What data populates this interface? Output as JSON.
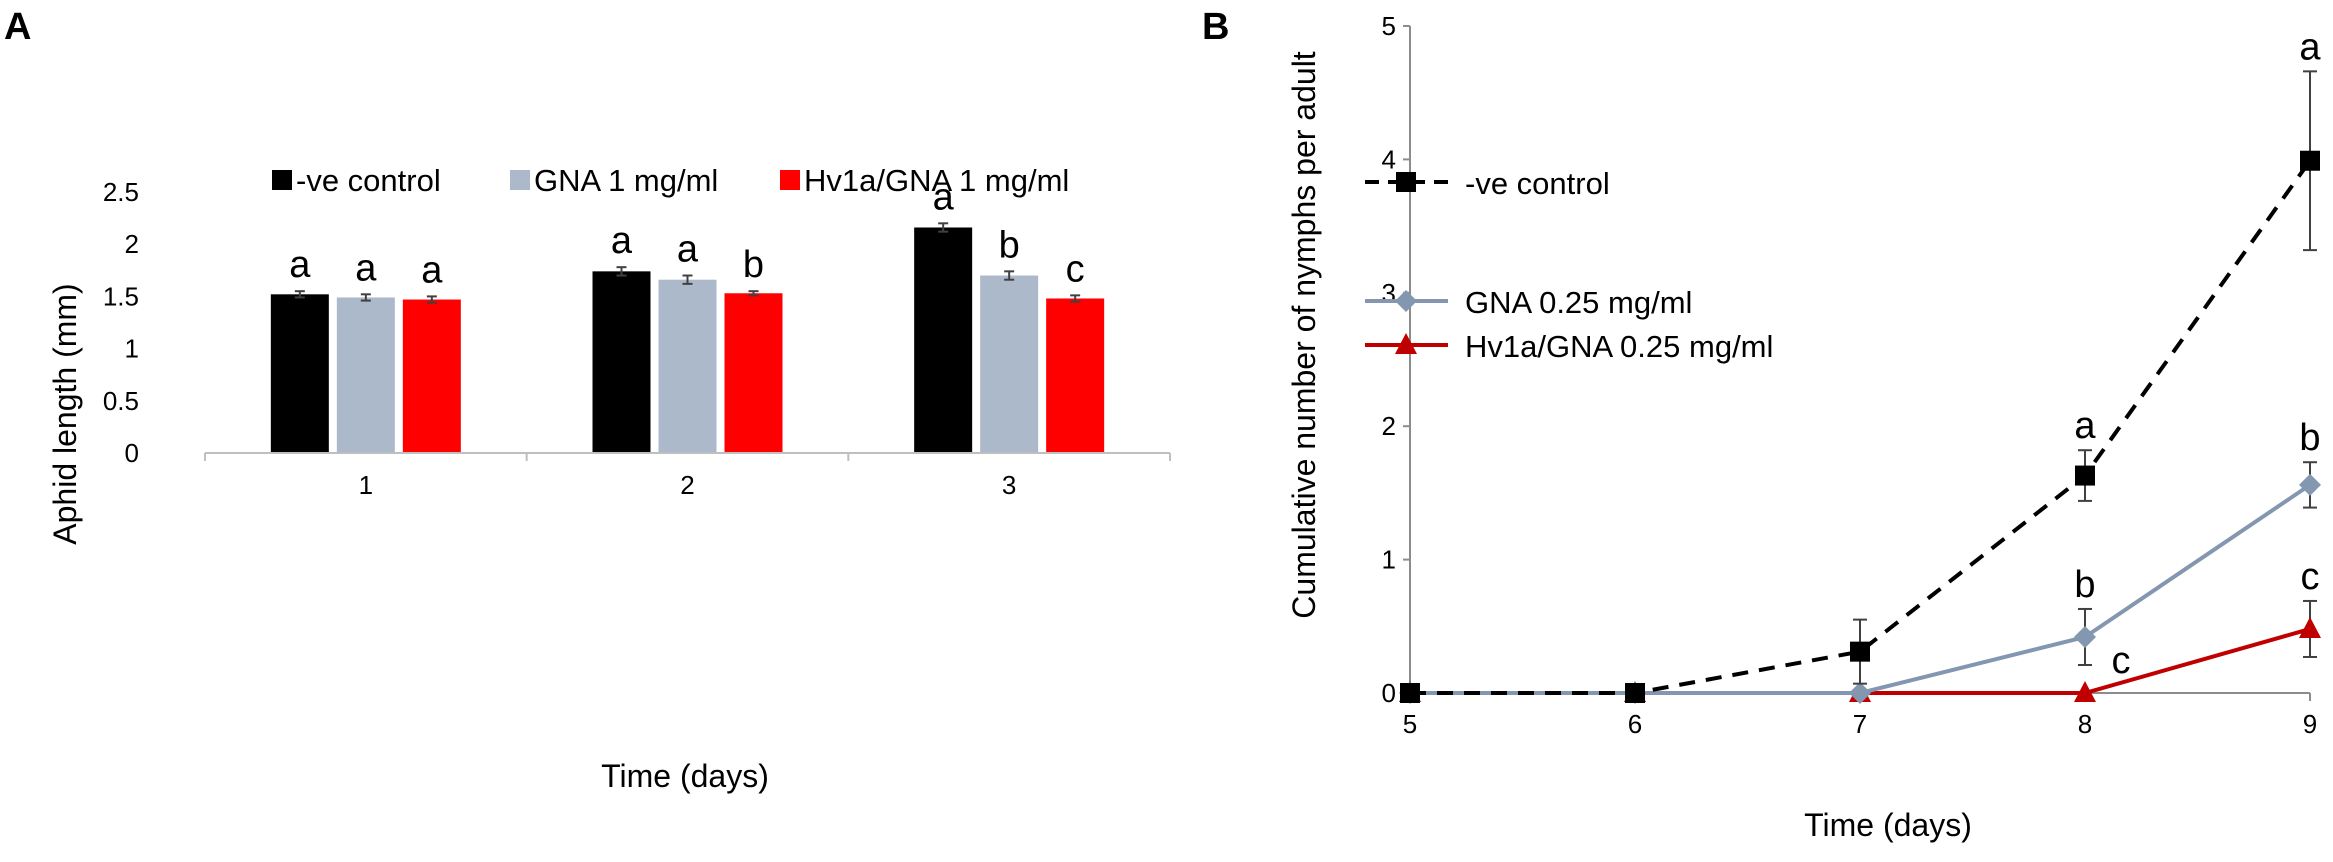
{
  "figure": {
    "panel_a_label": "A",
    "panel_b_label": "B"
  },
  "chart_data": [
    {
      "type": "bar",
      "panel": "A",
      "categories": [
        "1",
        "2",
        "3"
      ],
      "series": [
        {
          "name": "-ve control",
          "color": "#000000",
          "values": [
            1.52,
            1.74,
            2.16
          ],
          "errors": [
            0.03,
            0.04,
            0.04
          ],
          "letters": [
            "a",
            "a",
            "a"
          ]
        },
        {
          "name": "GNA 1 mg/ml",
          "color": "#acb9ca",
          "values": [
            1.49,
            1.66,
            1.7
          ],
          "errors": [
            0.03,
            0.04,
            0.04
          ],
          "letters": [
            "a",
            "a",
            "b"
          ]
        },
        {
          "name": "Hv1a/GNA 1 mg/ml",
          "color": "#ff0000",
          "values": [
            1.47,
            1.53,
            1.48
          ],
          "errors": [
            0.03,
            0.02,
            0.03
          ],
          "letters": [
            "a",
            "b",
            "c"
          ]
        }
      ],
      "xlabel": "Time (days)",
      "ylabel": "Aphid length (mm)",
      "ylim": [
        0,
        2.5
      ],
      "yticks": [
        "0",
        "0.5",
        "1",
        "1.5",
        "2",
        "2.5"
      ],
      "legend_position": "top",
      "grid": false
    },
    {
      "type": "line",
      "panel": "B",
      "x": [
        5,
        6,
        7,
        8,
        9
      ],
      "xticks": [
        "5",
        "6",
        "7",
        "8",
        "9"
      ],
      "series": [
        {
          "name": "-ve control",
          "color": "#000000",
          "style": "dashed",
          "marker": "square",
          "values": [
            0,
            0,
            0.31,
            1.63,
            3.99
          ],
          "errors": [
            0,
            0,
            0.24,
            0.19,
            0.67
          ],
          "letters": [
            "",
            "",
            "",
            "a",
            "a"
          ]
        },
        {
          "name": "GNA 0.25 mg/ml",
          "color": "#8497b0",
          "style": "solid",
          "marker": "diamond",
          "values": [
            0,
            0,
            0,
            0.42,
            1.56
          ],
          "errors": [
            0,
            0,
            0,
            0.21,
            0.17
          ],
          "letters": [
            "",
            "",
            "",
            "b",
            "b"
          ]
        },
        {
          "name": "Hv1a/GNA 0.25 mg/ml",
          "color": "#c00000",
          "style": "solid",
          "marker": "triangle",
          "values": [
            0,
            0,
            0,
            0,
            0.48
          ],
          "errors": [
            0,
            0,
            0,
            0,
            0.21
          ],
          "letters": [
            "",
            "",
            "",
            "c",
            "c"
          ]
        }
      ],
      "xlabel": "Time (days)",
      "ylabel": "Cumulative number of nymphs per adult",
      "ylim": [
        0,
        5
      ],
      "yticks": [
        "0",
        "1",
        "2",
        "3",
        "4",
        "5"
      ],
      "legend_position": "top-left",
      "grid": false
    }
  ]
}
